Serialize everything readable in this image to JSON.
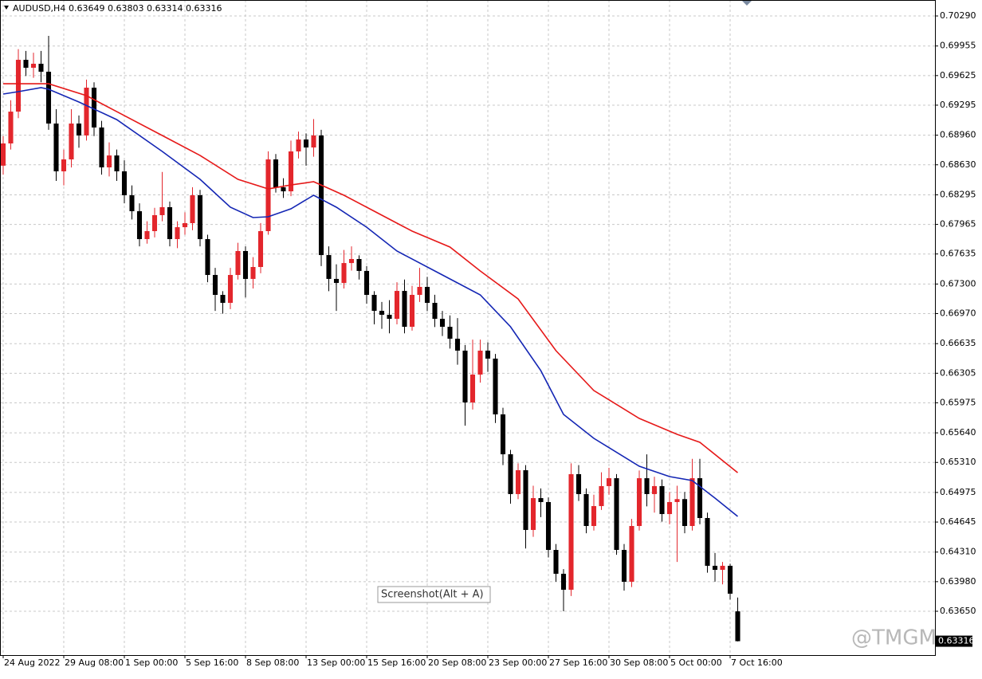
{
  "chart_data": {
    "type": "candlestick",
    "symbol": "AUDUSD,H4",
    "up_color": "#e3262c",
    "down_color": "#000000",
    "grid": true,
    "xlim": [
      -0.42,
      123.05
    ],
    "ylim": [
      0.63161,
      0.70468
    ],
    "xticks": [
      {
        "value": 0,
        "label": "24 Aug 2022"
      },
      {
        "value": 8,
        "label": "29 Aug 08:00"
      },
      {
        "value": 16,
        "label": "1 Sep 00:00"
      },
      {
        "value": 24,
        "label": "5 Sep 16:00"
      },
      {
        "value": 32,
        "label": "8 Sep 08:00"
      },
      {
        "value": 40,
        "label": "13 Sep 00:00"
      },
      {
        "value": 48,
        "label": "15 Sep 16:00"
      },
      {
        "value": 56,
        "label": "20 Sep 08:00"
      },
      {
        "value": 64,
        "label": "23 Sep 00:00"
      },
      {
        "value": 72,
        "label": "27 Sep 16:00"
      },
      {
        "value": 80,
        "label": "30 Sep 08:00"
      },
      {
        "value": 88,
        "label": "5 Oct 00:00"
      },
      {
        "value": 96,
        "label": "7 Oct 16:00"
      }
    ],
    "yticks": [
      {
        "value": 0.7029,
        "label": "0.70290"
      },
      {
        "value": 0.69955,
        "label": "0.69955"
      },
      {
        "value": 0.69625,
        "label": "0.69625"
      },
      {
        "value": 0.69295,
        "label": "0.69295"
      },
      {
        "value": 0.6896,
        "label": "0.68960"
      },
      {
        "value": 0.6863,
        "label": "0.68630"
      },
      {
        "value": 0.68295,
        "label": "0.68295"
      },
      {
        "value": 0.67965,
        "label": "0.67965"
      },
      {
        "value": 0.67635,
        "label": "0.67635"
      },
      {
        "value": 0.673,
        "label": "0.67300"
      },
      {
        "value": 0.6697,
        "label": "0.66970"
      },
      {
        "value": 0.66635,
        "label": "0.66635"
      },
      {
        "value": 0.66305,
        "label": "0.66305"
      },
      {
        "value": 0.65975,
        "label": "0.65975"
      },
      {
        "value": 0.6564,
        "label": "0.65640"
      },
      {
        "value": 0.6531,
        "label": "0.65310"
      },
      {
        "value": 0.64975,
        "label": "0.64975"
      },
      {
        "value": 0.64645,
        "label": "0.64645"
      },
      {
        "value": 0.6431,
        "label": "0.64310"
      },
      {
        "value": 0.6398,
        "label": "0.63980"
      },
      {
        "value": 0.6365,
        "label": "0.63650"
      }
    ],
    "open": [
      0.6862,
      0.68868,
      0.69223,
      0.69801,
      0.69712,
      0.69757,
      0.69668,
      0.6909,
      0.68557,
      0.6869,
      0.6909,
      0.68957,
      0.6949,
      0.69046,
      0.68601,
      0.68734,
      0.68557,
      0.6829,
      0.68112,
      0.67801,
      0.6789,
      0.68068,
      0.68157,
      0.67801,
      0.67934,
      0.67979,
      0.6829,
      0.67801,
      0.67401,
      0.67179,
      0.6709,
      0.67401,
      0.67668,
      0.67357,
      0.6749,
      0.6789,
      0.6869,
      0.68379,
      0.68334,
      0.68779,
      0.68912,
      0.68823,
      0.68957,
      0.67623,
      0.67357,
      0.67312,
      0.67534,
      0.67579,
      0.67446,
      0.67179,
      0.67001,
      0.66957,
      0.66912,
      0.67223,
      0.66823,
      0.67179,
      0.67268,
      0.6709,
      0.66912,
      0.66823,
      0.6669,
      0.66557,
      0.65979,
      0.6629,
      0.66557,
      0.66468,
      0.65846,
      0.65401,
      0.64957,
      0.65223,
      0.64557,
      0.64912,
      0.64868,
      0.64334,
      0.64068,
      0.6389,
      0.65179,
      0.64957,
      0.64601,
      0.64823,
      0.65046,
      0.65134,
      0.64334,
      0.63979,
      0.64601,
      0.65134,
      0.64957,
      0.65046,
      0.64734,
      0.64868,
      0.64901,
      0.64601,
      0.65134,
      0.6469,
      0.64157,
      0.64112,
      0.64157,
      0.63649
    ],
    "high": [
      0.6895,
      0.6935,
      0.6992,
      0.699,
      0.6988,
      0.699,
      0.70068,
      0.6925,
      0.688,
      0.6925,
      0.6918,
      0.6958,
      0.6955,
      0.6912,
      0.6888,
      0.688,
      0.6868,
      0.684,
      0.682,
      0.68,
      0.6815,
      0.6855,
      0.6822,
      0.68,
      0.681,
      0.6838,
      0.6835,
      0.6785,
      0.6748,
      0.6722,
      0.6748,
      0.6776,
      0.6772,
      0.676,
      0.6798,
      0.6878,
      0.6875,
      0.6848,
      0.689,
      0.69,
      0.6898,
      0.6914,
      0.6902,
      0.6772,
      0.6752,
      0.6768,
      0.6772,
      0.6762,
      0.675,
      0.6722,
      0.671,
      0.6712,
      0.6732,
      0.6735,
      0.6728,
      0.6748,
      0.6738,
      0.6718,
      0.67,
      0.6695,
      0.6692,
      0.6662,
      0.6668,
      0.6668,
      0.6665,
      0.6652,
      0.6592,
      0.6545,
      0.653,
      0.6528,
      0.6505,
      0.6502,
      0.6492,
      0.644,
      0.6412,
      0.653,
      0.6528,
      0.6502,
      0.6495,
      0.652,
      0.6525,
      0.6518,
      0.644,
      0.6468,
      0.6522,
      0.654,
      0.6515,
      0.6512,
      0.6498,
      0.6505,
      0.6498,
      0.6535,
      0.6535,
      0.6475,
      0.643,
      0.642,
      0.6418,
      0.63803
    ],
    "low": [
      0.6852,
      0.688,
      0.6915,
      0.6962,
      0.696,
      0.6955,
      0.6902,
      0.6845,
      0.684,
      0.686,
      0.6882,
      0.689,
      0.6895,
      0.6852,
      0.685,
      0.6845,
      0.682,
      0.6802,
      0.6772,
      0.6775,
      0.6782,
      0.68,
      0.6772,
      0.677,
      0.6785,
      0.679,
      0.6772,
      0.6732,
      0.67,
      0.6697,
      0.6702,
      0.6735,
      0.6715,
      0.6725,
      0.6742,
      0.6785,
      0.6832,
      0.6826,
      0.6828,
      0.687,
      0.6862,
      0.6872,
      0.675,
      0.6722,
      0.67,
      0.6725,
      0.6745,
      0.6735,
      0.6708,
      0.6685,
      0.668,
      0.6675,
      0.6685,
      0.6675,
      0.6678,
      0.671,
      0.67,
      0.6682,
      0.6672,
      0.6658,
      0.664,
      0.6572,
      0.659,
      0.662,
      0.6632,
      0.6575,
      0.6528,
      0.6485,
      0.649,
      0.6435,
      0.6448,
      0.647,
      0.6425,
      0.6398,
      0.6365,
      0.6382,
      0.6488,
      0.6452,
      0.6455,
      0.6478,
      0.6495,
      0.6428,
      0.6388,
      0.6392,
      0.6455,
      0.6482,
      0.6475,
      0.6465,
      0.6462,
      0.642,
      0.6452,
      0.6455,
      0.6462,
      0.6408,
      0.6398,
      0.6395,
      0.6378,
      0.63314
    ],
    "close": [
      0.68868,
      0.69223,
      0.69801,
      0.69712,
      0.69757,
      0.69668,
      0.6909,
      0.68557,
      0.6869,
      0.6909,
      0.68957,
      0.6949,
      0.69046,
      0.68601,
      0.68734,
      0.68557,
      0.6829,
      0.68112,
      0.67801,
      0.6789,
      0.68068,
      0.68157,
      0.67801,
      0.67934,
      0.67979,
      0.6829,
      0.67801,
      0.67401,
      0.67179,
      0.6709,
      0.67401,
      0.67668,
      0.67357,
      0.6749,
      0.6789,
      0.6869,
      0.68379,
      0.68334,
      0.68779,
      0.68912,
      0.68823,
      0.68957,
      0.67623,
      0.67357,
      0.67312,
      0.67534,
      0.67579,
      0.67446,
      0.67179,
      0.67001,
      0.66957,
      0.66912,
      0.67223,
      0.66823,
      0.67179,
      0.67268,
      0.6709,
      0.66912,
      0.66823,
      0.6669,
      0.66557,
      0.65979,
      0.6629,
      0.66557,
      0.66468,
      0.65846,
      0.65401,
      0.64957,
      0.65223,
      0.64557,
      0.64912,
      0.64868,
      0.64334,
      0.64068,
      0.6389,
      0.65179,
      0.64957,
      0.64601,
      0.64823,
      0.65046,
      0.65134,
      0.64334,
      0.63979,
      0.64601,
      0.65134,
      0.64957,
      0.65046,
      0.64734,
      0.64868,
      0.64901,
      0.64601,
      0.65134,
      0.6469,
      0.64157,
      0.64112,
      0.64157,
      0.63846,
      0.63316
    ],
    "lines": [
      {
        "color": "#e61919",
        "x": [
          0,
          6,
          11,
          15,
          21,
          26,
          31,
          35,
          38,
          41,
          45,
          49,
          54,
          59,
          63,
          68,
          73,
          78,
          84,
          89,
          92,
          97
        ],
        "values": [
          0.69534,
          0.69534,
          0.69401,
          0.69223,
          0.68957,
          0.68734,
          0.68468,
          0.68361,
          0.68405,
          0.68441,
          0.6829,
          0.68112,
          0.6789,
          0.67712,
          0.67446,
          0.67134,
          0.66557,
          0.66112,
          0.65801,
          0.65623,
          0.65534,
          0.65196
        ]
      },
      {
        "color": "#1426b4",
        "x": [
          0,
          2,
          5,
          6,
          10,
          15,
          21,
          26,
          30,
          33,
          35,
          38,
          41,
          44,
          48,
          52,
          58,
          63,
          67,
          71,
          74,
          78,
          84,
          88,
          91,
          94,
          97
        ],
        "values": [
          0.69419,
          0.69446,
          0.6949,
          0.69472,
          0.6933,
          0.69134,
          0.68779,
          0.68468,
          0.68157,
          0.68041,
          0.6805,
          0.68139,
          0.6829,
          0.68157,
          0.67934,
          0.67668,
          0.67401,
          0.67179,
          0.66823,
          0.66334,
          0.65846,
          0.65579,
          0.65268,
          0.65152,
          0.65108,
          0.64912,
          0.64708
        ]
      }
    ]
  },
  "tooltip": "Screenshot(Alt + A)",
  "watermark": "@TMGM"
}
